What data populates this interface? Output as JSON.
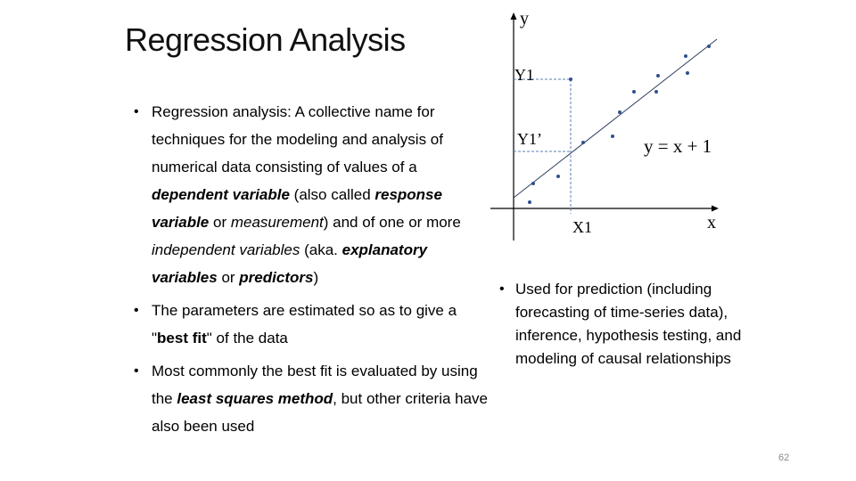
{
  "slide": {
    "title": "Regression Analysis",
    "page_number": "62"
  },
  "left_bullets": [
    {
      "parts": [
        {
          "text": "Regression analysis: A collective name for techniques for the modeling and analysis of numerical data consisting of values of a ",
          "style": ""
        },
        {
          "text": "dependent variable",
          "style": "bi"
        },
        {
          "text": " (also called ",
          "style": ""
        },
        {
          "text": "response variable",
          "style": "bi"
        },
        {
          "text": " or ",
          "style": ""
        },
        {
          "text": "measurement",
          "style": "i"
        },
        {
          "text": ") and of one or more ",
          "style": ""
        },
        {
          "text": "independent variables",
          "style": "i"
        },
        {
          "text": " (aka. ",
          "style": ""
        },
        {
          "text": "explanatory variables",
          "style": "bi"
        },
        {
          "text": " or ",
          "style": ""
        },
        {
          "text": "predictors",
          "style": "bi"
        },
        {
          "text": ")",
          "style": ""
        }
      ]
    },
    {
      "parts": [
        {
          "text": "The parameters are estimated so as to give a \"",
          "style": ""
        },
        {
          "text": "best fit",
          "style": "b"
        },
        {
          "text": "\" of the data",
          "style": ""
        }
      ]
    },
    {
      "parts": [
        {
          "text": "Most commonly the best fit is evaluated by using the ",
          "style": ""
        },
        {
          "text": "least squares method",
          "style": "bi"
        },
        {
          "text": ", but other criteria have also been used",
          "style": ""
        }
      ]
    }
  ],
  "right_bullets": [
    {
      "parts": [
        {
          "text": "Used for prediction (including forecasting of time-series data), inference, hypothesis testing, and modeling of causal relationships",
          "style": ""
        }
      ]
    }
  ],
  "diagram": {
    "y_axis_label": "y",
    "x_axis_label": "x",
    "equation": "y = x + 1",
    "y1_label": "Y1",
    "y1_prime_label": "Y1’",
    "x1_label": "X1",
    "point_color": "#2f4f8f",
    "guide_color": "#5a7fb0"
  }
}
